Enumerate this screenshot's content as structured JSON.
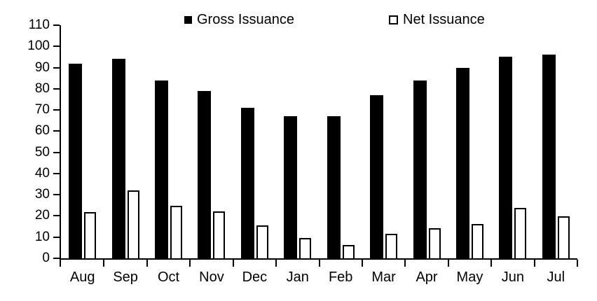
{
  "chart_data": {
    "type": "bar",
    "title": "",
    "xlabel": "",
    "ylabel": "",
    "categories": [
      "Aug",
      "Sep",
      "Oct",
      "Nov",
      "Dec",
      "Jan",
      "Feb",
      "Mar",
      "Apr",
      "May",
      "Jun",
      "Jul"
    ],
    "series": [
      {
        "name": "Gross Issuance",
        "style": "solid",
        "color": "#000000",
        "values": [
          92,
          94,
          84,
          79,
          71,
          67,
          67,
          77,
          84,
          90,
          95,
          96
        ]
      },
      {
        "name": "Net Issuance",
        "style": "outline",
        "color": "#ffffff",
        "border_color": "#000000",
        "values": [
          21,
          31.5,
          24,
          21.5,
          15,
          9,
          5.5,
          11,
          13.5,
          15.5,
          23,
          19
        ]
      }
    ],
    "ylim": [
      0,
      110
    ],
    "ytick_step": 10,
    "ytick_labels": [
      "0",
      "10",
      "20",
      "30",
      "40",
      "50",
      "60",
      "70",
      "80",
      "90",
      "100",
      "110"
    ],
    "grid": false,
    "legend_position": "top-center"
  },
  "colors": {
    "background": "#ffffff",
    "axis": "#000000",
    "bar_gross": "#000000",
    "bar_net_fill": "#ffffff",
    "bar_net_border": "#000000",
    "text": "#000000"
  }
}
